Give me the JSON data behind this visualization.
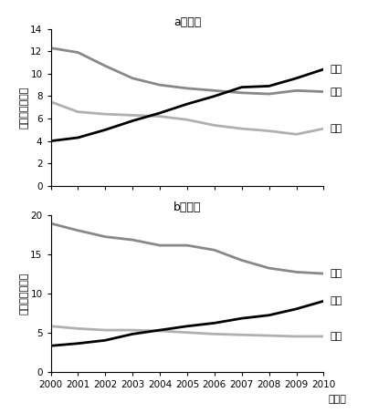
{
  "years": [
    2000,
    2001,
    2002,
    2003,
    2004,
    2005,
    2006,
    2007,
    2008,
    2009,
    2010
  ],
  "export": {
    "china": [
      4.0,
      4.3,
      5.0,
      5.8,
      6.5,
      7.3,
      8.0,
      8.8,
      8.9,
      9.6,
      10.4
    ],
    "usa": [
      12.3,
      11.9,
      10.7,
      9.6,
      9.0,
      8.7,
      8.5,
      8.3,
      8.2,
      8.5,
      8.4
    ],
    "japan": [
      7.5,
      6.6,
      6.4,
      6.3,
      6.2,
      5.9,
      5.4,
      5.1,
      4.9,
      4.6,
      5.1
    ]
  },
  "import": {
    "usa": [
      18.9,
      18.0,
      17.2,
      16.8,
      16.1,
      16.1,
      15.5,
      14.2,
      13.2,
      12.7,
      12.5
    ],
    "china": [
      3.3,
      3.6,
      4.0,
      4.8,
      5.3,
      5.8,
      6.2,
      6.8,
      7.2,
      8.0,
      9.0
    ],
    "japan": [
      5.8,
      5.5,
      5.3,
      5.3,
      5.2,
      5.0,
      4.8,
      4.7,
      4.6,
      4.5,
      4.5
    ]
  },
  "title_a": "a）輸出",
  "title_b": "b）輸入",
  "ylabel": "（シェア，％）",
  "xlabel_suffix": "（年）",
  "legend_china": "中国",
  "legend_usa": "米国",
  "legend_japan": "日本",
  "color_china": "#000000",
  "color_usa": "#888888",
  "color_japan": "#b0b0b0",
  "ylim_a": [
    0,
    14
  ],
  "ylim_b": [
    0,
    20
  ],
  "yticks_a": [
    0,
    2,
    4,
    6,
    8,
    10,
    12,
    14
  ],
  "yticks_b": [
    0,
    5,
    10,
    15,
    20
  ],
  "linewidth": 2.0,
  "bg_color": "#ffffff",
  "text_color": "#000000"
}
